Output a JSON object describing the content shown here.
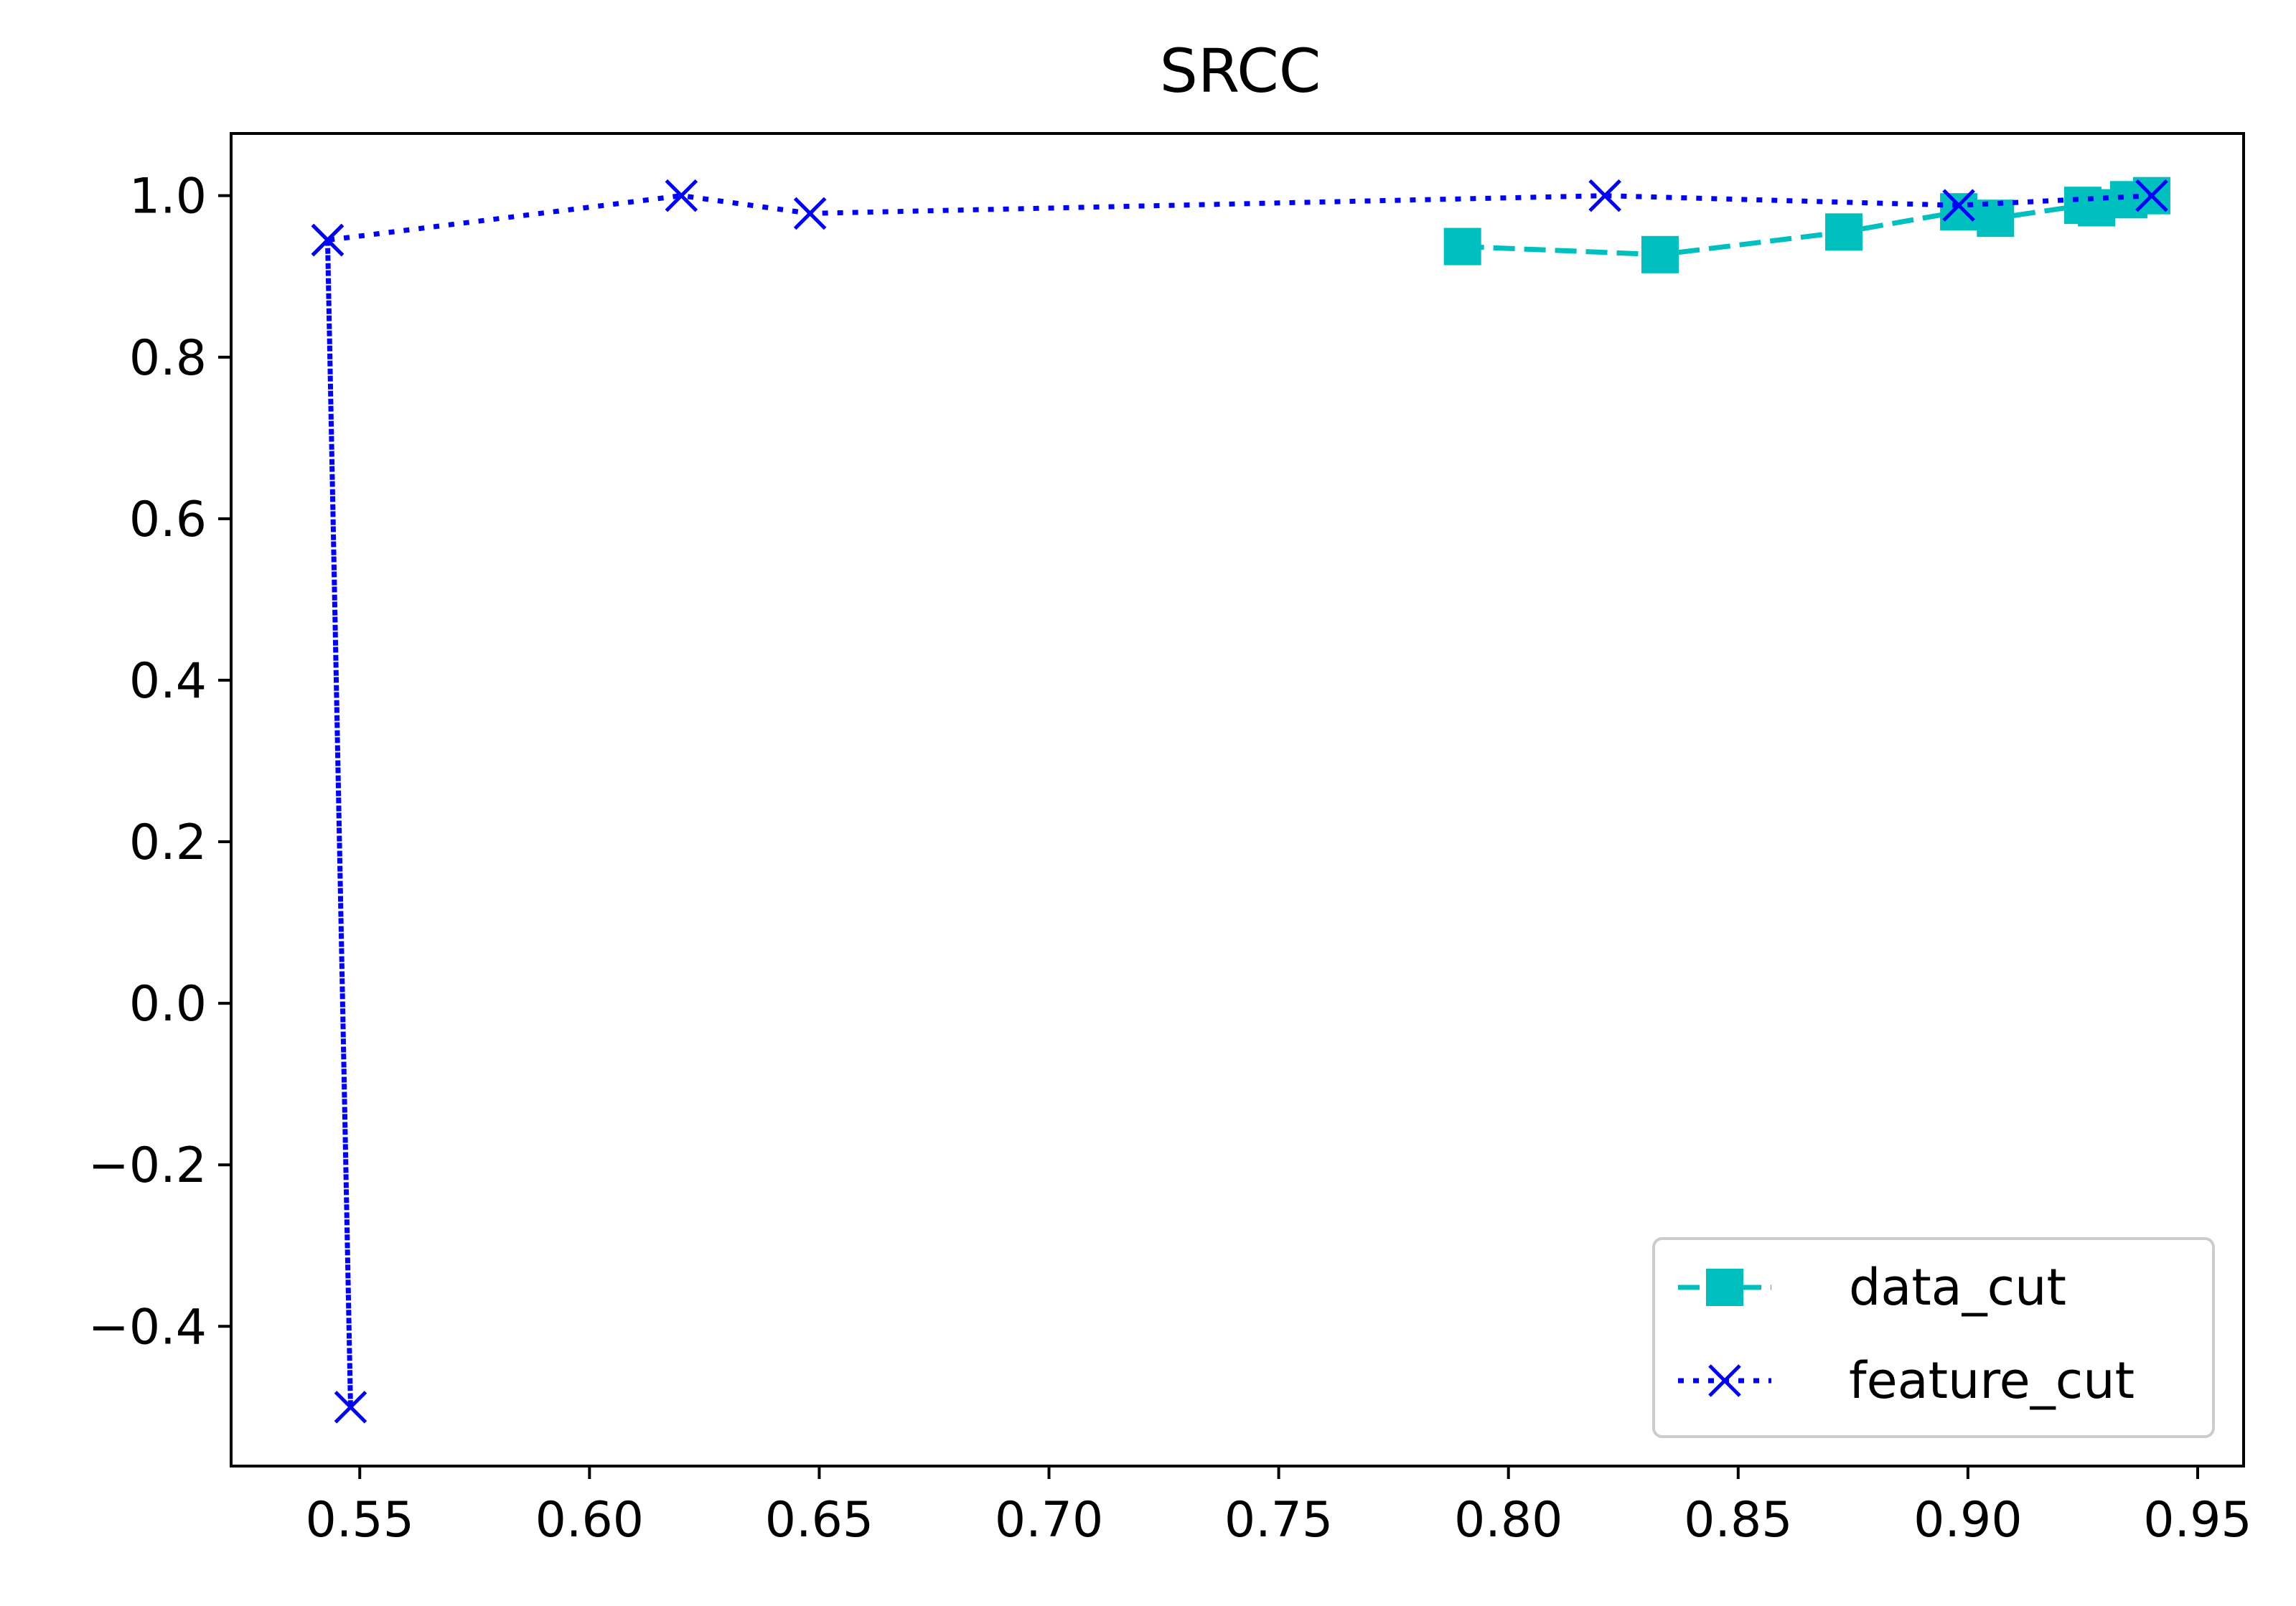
{
  "chart_data": {
    "type": "line",
    "title": "SRCC",
    "xlabel": "",
    "ylabel": "",
    "xlim": [
      0.522,
      0.96
    ],
    "ylim": [
      -0.573,
      1.077
    ],
    "xticks": [
      0.55,
      0.6,
      0.65,
      0.7,
      0.75,
      0.8,
      0.85,
      0.9,
      0.95
    ],
    "xtick_labels": [
      "0.55",
      "0.60",
      "0.65",
      "0.70",
      "0.75",
      "0.80",
      "0.85",
      "0.90",
      "0.95"
    ],
    "yticks": [
      1.0,
      0.8,
      0.6,
      0.4,
      0.2,
      0.0,
      -0.2,
      -0.4
    ],
    "ytick_labels": [
      "1.0",
      "0.8",
      "0.6",
      "0.4",
      "0.2",
      "0.0",
      "−0.2",
      "−0.4"
    ],
    "grid": false,
    "legend_position": "lower-right",
    "series": [
      {
        "name": "data_cut",
        "color": "#00bfbf",
        "linestyle": "dashed",
        "marker": "square",
        "x": [
          0.79,
          0.833,
          0.873,
          0.898,
          0.906,
          0.925,
          0.928,
          0.935,
          0.94
        ],
        "y": [
          0.937,
          0.927,
          0.955,
          0.98,
          0.972,
          0.988,
          0.985,
          0.995,
          1.0
        ]
      },
      {
        "name": "feature_cut",
        "color": "#0000ff",
        "linestyle": "dotted",
        "marker": "x",
        "x": [
          0.543,
          0.548,
          0.543,
          0.62,
          0.648,
          0.821,
          0.898,
          0.94
        ],
        "y": [
          0.945,
          -0.5,
          0.945,
          1.0,
          0.978,
          1.0,
          0.988,
          1.0
        ]
      }
    ]
  }
}
